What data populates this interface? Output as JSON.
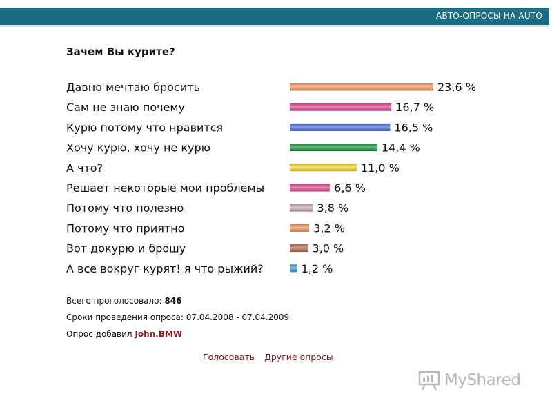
{
  "header": {
    "section_title": "АВТО-ОПРОСЫ НА AUTO",
    "brand_color": "#1a6c80"
  },
  "poll": {
    "question": "Зачем Вы курите?"
  },
  "chart_data": {
    "type": "bar",
    "orientation": "horizontal",
    "categories": [
      "Давно мечтаю бросить",
      "Сам не знаю почему",
      "Курю потому что нравится",
      "Хочу курю, хочу не курю",
      "А что?",
      "Решает некоторые мои проблемы",
      "Потому что полезно",
      "Потому что приятно",
      "Вот докурю и брошу",
      "А все вокруг курят! я что рыжий?"
    ],
    "values": [
      23.6,
      16.7,
      16.5,
      14.4,
      11.0,
      6.6,
      3.8,
      3.2,
      3.0,
      1.2
    ],
    "value_labels": [
      "23,6 %",
      "16,7 %",
      "16,5 %",
      "14,4 %",
      "11,0 %",
      "6,6 %",
      "3,8 %",
      "3,2 %",
      "3,0 %",
      "1,2 %"
    ],
    "colors": [
      "#f4925c",
      "#e0408f",
      "#4866d8",
      "#16913a",
      "#f1d52c",
      "#e2478f",
      "#c6a9ae",
      "#f4925c",
      "#b5694c",
      "#3b9adb"
    ],
    "xlim": [
      0,
      23.6
    ],
    "grid": false,
    "legend": "none"
  },
  "stats": {
    "total_label": "Всего проголосовало:",
    "total_value": "846",
    "period_label": "Сроки проведения опроса:",
    "period_value": "07.04.2008 - 07.04.2009",
    "added_label": "Опрос добавил",
    "added_user": "John.BMW"
  },
  "links": {
    "vote": "Голосовать",
    "other": "Другие опросы"
  },
  "watermark": {
    "text": "MyShared"
  }
}
